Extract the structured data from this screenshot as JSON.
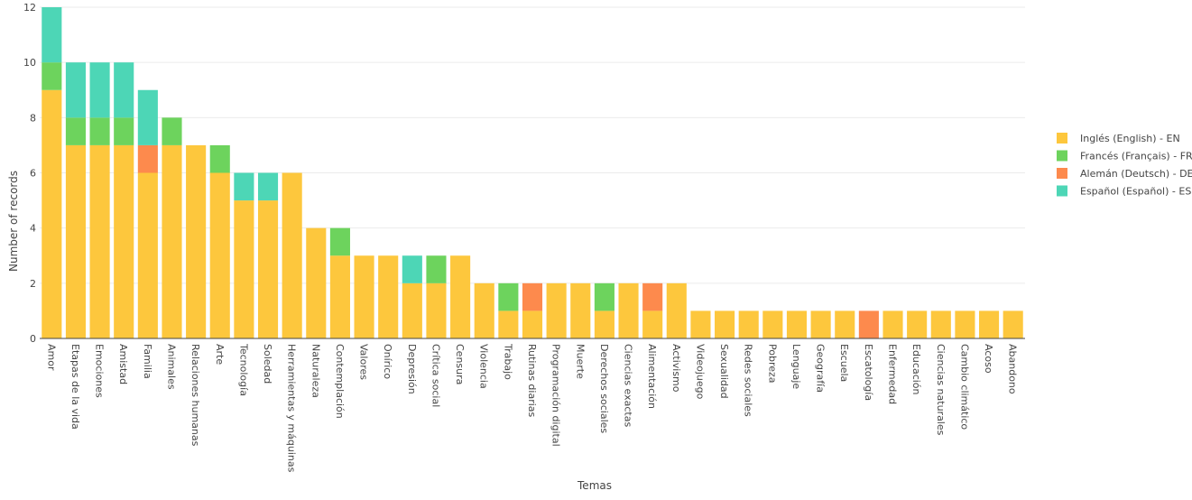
{
  "chart_data": {
    "type": "bar",
    "stacked": true,
    "xlabel": "Temas",
    "ylabel": "Number of records",
    "ylim": [
      0,
      12
    ],
    "yticks": [
      0,
      2,
      4,
      6,
      8,
      10,
      12
    ],
    "grid": true,
    "legend_position": "right",
    "categories": [
      "Amor",
      "Etapas de la vida",
      "Emociones",
      "Amistad",
      "Familia",
      "Animales",
      "Relaciones humanas",
      "Arte",
      "Tecnología",
      "Soledad",
      "Herramientas y máquinas",
      "Naturaleza",
      "Contemplación",
      "Valores",
      "Onírico",
      "Depresión",
      "Crítica social",
      "Censura",
      "Violencia",
      "Trabajo",
      "Rutinas diarias",
      "Programación digital",
      "Muerte",
      "Derechos sociales",
      "Ciencias exactas",
      "Alimentación",
      "Activismo",
      "Videojuego",
      "Sexualidad",
      "Redes sociales",
      "Pobreza",
      "Lenguaje",
      "Geografía",
      "Escuela",
      "Escatología",
      "Enfermedad",
      "Educación",
      "Ciencias naturales",
      "Cambio climático",
      "Acoso",
      "Abandono"
    ],
    "series": [
      {
        "name": "Inglés (English) - EN",
        "color": "#fdc73d",
        "values": [
          9,
          7,
          7,
          7,
          6,
          7,
          7,
          6,
          5,
          5,
          6,
          4,
          3,
          3,
          3,
          2,
          2,
          3,
          2,
          1,
          1,
          2,
          2,
          1,
          2,
          1,
          2,
          1,
          1,
          1,
          1,
          1,
          1,
          1,
          0,
          1,
          1,
          1,
          1,
          1,
          1
        ]
      },
      {
        "name": "Francés (Français) - FR",
        "color": "#6dd35d",
        "values": [
          1,
          1,
          1,
          1,
          0,
          1,
          0,
          1,
          0,
          0,
          0,
          0,
          1,
          0,
          0,
          0,
          1,
          0,
          0,
          1,
          0,
          0,
          0,
          1,
          0,
          0,
          0,
          0,
          0,
          0,
          0,
          0,
          0,
          0,
          0,
          0,
          0,
          0,
          0,
          0,
          0
        ]
      },
      {
        "name": "Alemán (Deutsch) - DE",
        "color": "#fd8a4d",
        "values": [
          0,
          0,
          0,
          0,
          1,
          0,
          0,
          0,
          0,
          0,
          0,
          0,
          0,
          0,
          0,
          0,
          0,
          0,
          0,
          0,
          1,
          0,
          0,
          0,
          0,
          1,
          0,
          0,
          0,
          0,
          0,
          0,
          0,
          0,
          1,
          0,
          0,
          0,
          0,
          0,
          0
        ]
      },
      {
        "name": "Español (Español) - ES",
        "color": "#4dd6b6",
        "values": [
          2,
          2,
          2,
          2,
          2,
          0,
          0,
          0,
          1,
          1,
          0,
          0,
          0,
          0,
          0,
          1,
          0,
          0,
          0,
          0,
          0,
          0,
          0,
          0,
          0,
          0,
          0,
          0,
          0,
          0,
          0,
          0,
          0,
          0,
          0,
          0,
          0,
          0,
          0,
          0,
          0
        ]
      }
    ]
  }
}
